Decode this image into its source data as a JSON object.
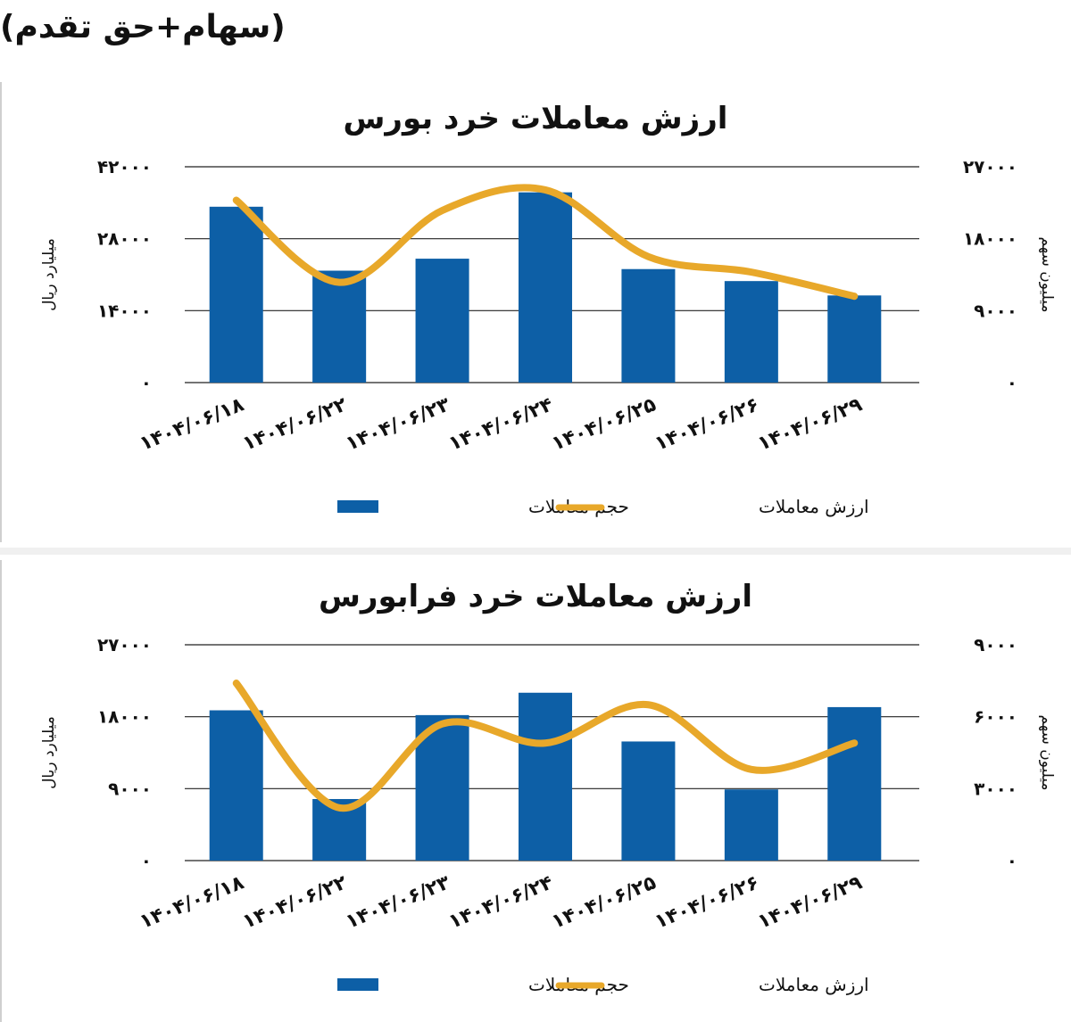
{
  "heading": "(سهام+حق تقدم)",
  "colors": {
    "bar": "#0d5fa6",
    "line": "#e8a82a",
    "grid": "#222222"
  },
  "chart_data": [
    {
      "type": "bar",
      "title": "ارزش معاملات خرد بورس",
      "categories": [
        "1404/06/18",
        "1404/06/22",
        "1404/06/23",
        "1404/06/24",
        "1404/06/25",
        "1404/06/26",
        "1404/06/29"
      ],
      "category_labels": [
        "۱۴۰۴/۰۶/۱۸",
        "۱۴۰۴/۰۶/۲۲",
        "۱۴۰۴/۰۶/۲۳",
        "۱۴۰۴/۰۶/۲۴",
        "۱۴۰۴/۰۶/۲۵",
        "۱۴۰۴/۰۶/۲۶",
        "۱۴۰۴/۰۶/۲۹"
      ],
      "ylabel_left": "میلیارد ریال",
      "ylabel_right": "میلیون سهم",
      "yticks_left": [
        "۰",
        "۱۴۰۰۰",
        "۲۸۰۰۰",
        "۴۲۰۰۰"
      ],
      "yticks_right": [
        "۰",
        "۹۰۰۰",
        "۱۸۰۰۰",
        "۲۷۰۰۰"
      ],
      "ylim_left": [
        0,
        42000
      ],
      "ylim_right": [
        0,
        27000
      ],
      "series": [
        {
          "name": "حجم معاملات",
          "type": "bar",
          "axis": "right",
          "values": [
            22000,
            14000,
            15500,
            23800,
            14200,
            12700,
            10900
          ]
        },
        {
          "name": "ارزش معاملات",
          "type": "line",
          "axis": "left",
          "values": [
            35500,
            19500,
            33500,
            37500,
            24500,
            21500,
            16800
          ]
        }
      ],
      "grid": true,
      "legend_position": "bottom"
    },
    {
      "type": "bar",
      "title": "ارزش معاملات خرد فرابورس",
      "categories": [
        "1404/06/18",
        "1404/06/22",
        "1404/06/23",
        "1404/06/24",
        "1404/06/25",
        "1404/06/26",
        "1404/06/29"
      ],
      "category_labels": [
        "۱۴۰۴/۰۶/۱۸",
        "۱۴۰۴/۰۶/۲۲",
        "۱۴۰۴/۰۶/۲۳",
        "۱۴۰۴/۰۶/۲۴",
        "۱۴۰۴/۰۶/۲۵",
        "۱۴۰۴/۰۶/۲۶",
        "۱۴۰۴/۰۶/۲۹"
      ],
      "ylabel_left": "میلیارد ریال",
      "ylabel_right": "میلیون سهم",
      "yticks_left": [
        "۰",
        "۹۰۰۰",
        "۱۸۰۰۰",
        "۲۷۰۰۰"
      ],
      "yticks_right": [
        "۰",
        "۳۰۰۰",
        "۶۰۰۰",
        "۹۰۰۰"
      ],
      "ylim_left": [
        0,
        27000
      ],
      "ylim_right": [
        0,
        9000
      ],
      "series": [
        {
          "name": "حجم معاملات",
          "type": "bar",
          "axis": "left",
          "values": [
            18800,
            7700,
            18200,
            21000,
            14900,
            8900,
            19200
          ]
        },
        {
          "name": "ارزش معاملات",
          "type": "line",
          "axis": "right",
          "values": [
            7400,
            2200,
            5700,
            4900,
            6500,
            3800,
            4900
          ]
        }
      ],
      "grid": true,
      "legend_position": "bottom"
    }
  ]
}
